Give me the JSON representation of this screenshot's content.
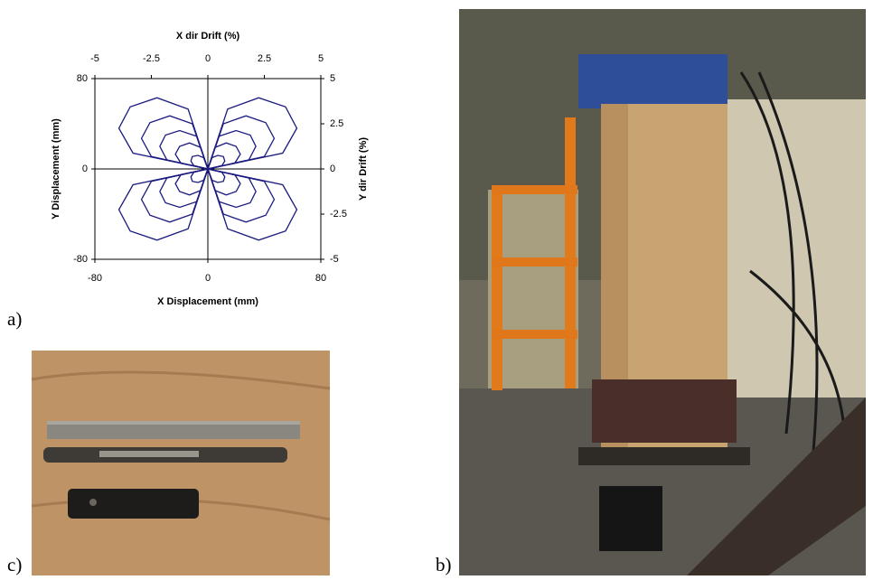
{
  "chart_data": {
    "type": "line",
    "xlabel": "X Displacement (mm)",
    "ylabel": "Y Displacement (mm)",
    "x2label": "X dir Drift (%)",
    "y2label": "Y dir Drift (%)",
    "xlim": [
      -80,
      80
    ],
    "xticks": [
      -80,
      0,
      80
    ],
    "ylim": [
      -80,
      80
    ],
    "yticks": [
      -80,
      0,
      80
    ],
    "x2lim": [
      -5,
      5
    ],
    "x2ticks": [
      -5,
      -2.5,
      0,
      2.5,
      5
    ],
    "y2lim": [
      -5,
      5
    ],
    "y2ticks": [
      -5,
      -2.5,
      0,
      2.5,
      5
    ],
    "color": "#1a1a80",
    "series": [
      {
        "x": [
          0,
          53,
          63,
          55,
          36,
          14,
          0,
          -14,
          -36,
          -55,
          -63,
          -53,
          0,
          -53,
          -63,
          -55,
          -36,
          -14,
          0,
          14,
          36,
          55,
          63,
          53,
          0
        ],
        "values": [
          0,
          14,
          36,
          55,
          63,
          53,
          0,
          53,
          63,
          55,
          36,
          14,
          0,
          -14,
          -36,
          -55,
          -63,
          -53,
          0,
          -53,
          -63,
          -55,
          -36,
          -14,
          0
        ]
      },
      {
        "x": [
          0,
          40,
          47,
          41,
          27,
          11,
          0,
          -11,
          -27,
          -41,
          -47,
          -40,
          0,
          -40,
          -47,
          -41,
          -27,
          -11,
          0,
          11,
          27,
          41,
          47,
          40,
          0
        ],
        "values": [
          0,
          11,
          27,
          41,
          47,
          40,
          0,
          40,
          47,
          41,
          27,
          11,
          0,
          -11,
          -27,
          -41,
          -47,
          -40,
          0,
          -40,
          -47,
          -41,
          -27,
          -11,
          0
        ]
      },
      {
        "x": [
          0,
          29,
          34,
          30,
          20,
          8,
          0,
          -8,
          -20,
          -30,
          -34,
          -29,
          0,
          -29,
          -34,
          -30,
          -20,
          -8,
          0,
          8,
          20,
          30,
          34,
          29,
          0
        ],
        "values": [
          0,
          8,
          20,
          30,
          34,
          29,
          0,
          29,
          34,
          30,
          20,
          8,
          0,
          -8,
          -20,
          -30,
          -34,
          -29,
          0,
          -29,
          -34,
          -30,
          -20,
          -8,
          0
        ]
      },
      {
        "x": [
          0,
          19,
          23,
          20,
          13,
          5,
          0,
          -5,
          -13,
          -20,
          -23,
          -19,
          0,
          -19,
          -23,
          -20,
          -13,
          -5,
          0,
          5,
          13,
          20,
          23,
          19,
          0
        ],
        "values": [
          0,
          5,
          13,
          20,
          23,
          19,
          0,
          19,
          23,
          20,
          13,
          5,
          0,
          -5,
          -13,
          -20,
          -23,
          -19,
          0,
          -19,
          -23,
          -20,
          -13,
          -5,
          0
        ]
      },
      {
        "x": [
          0,
          10,
          12,
          11,
          7,
          3,
          0,
          -3,
          -7,
          -11,
          -12,
          -10,
          0,
          -10,
          -12,
          -11,
          -7,
          -3,
          0,
          3,
          7,
          11,
          12,
          10,
          0
        ],
        "values": [
          0,
          3,
          7,
          11,
          12,
          10,
          0,
          10,
          12,
          11,
          7,
          3,
          0,
          -3,
          -7,
          -11,
          -12,
          -10,
          0,
          -10,
          -12,
          -11,
          -7,
          -3,
          0
        ]
      }
    ]
  },
  "panels": {
    "a": "a)",
    "b": "b)",
    "c": "c)"
  }
}
